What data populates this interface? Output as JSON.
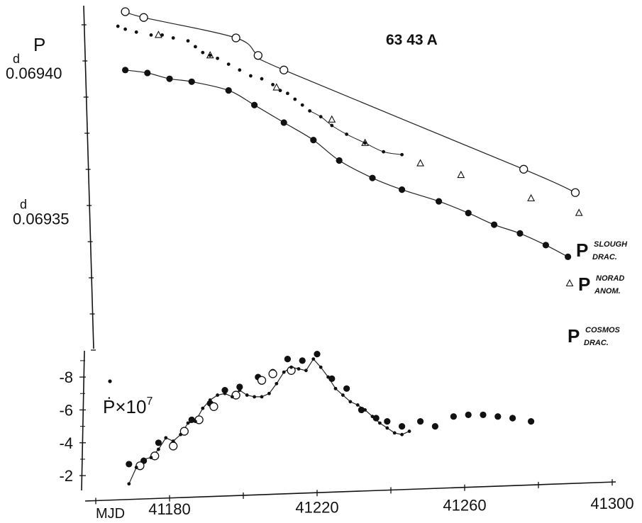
{
  "chart_data": [
    {
      "type": "scatter",
      "title": "63 43 A",
      "ylabel": "P",
      "y_tick_labels": [
        {
          "sup": "d",
          "text": "0.06940",
          "value": 0.0694
        },
        {
          "sup": "d",
          "text": "0.06935",
          "value": 0.06935
        }
      ],
      "ylim": [
        0.069305,
        0.069424
      ],
      "series": [
        {
          "label_main": "P",
          "label_sup": "SLOUGH",
          "label_sub": "DRAC.",
          "marker": "open-circle",
          "connected": true,
          "points": [
            [
              41168,
              0.06942
            ],
            [
              41173,
              0.069418
            ],
            [
              41198,
              0.069411
            ],
            [
              41204,
              0.069405
            ],
            [
              41211,
              0.0694
            ],
            [
              41276,
              0.069366
            ],
            [
              41290,
              0.069358
            ]
          ]
        },
        {
          "label_main": "P",
          "label_sup": "NORAD",
          "label_sub": "ANOM.",
          "marker": "open-triangle",
          "connected": false,
          "points": [
            [
              41177,
              0.069412
            ],
            [
              41191,
              0.069405
            ],
            [
              41209,
              0.069394
            ],
            [
              41224,
              0.069383
            ],
            [
              41233,
              0.069375
            ],
            [
              41248,
              0.069368
            ],
            [
              41259,
              0.069364
            ],
            [
              41278,
              0.069356
            ],
            [
              41291,
              0.069351
            ]
          ]
        },
        {
          "label_main": "P",
          "label_sup": "NORAD",
          "label_sub": "ANOM.",
          "marker": "small-dot",
          "connected": false,
          "points": [
            [
              41166,
              0.069415
            ],
            [
              41168,
              0.069414
            ],
            [
              41171,
              0.069413
            ],
            [
              41175,
              0.069412
            ],
            [
              41178,
              0.069412
            ],
            [
              41181,
              0.069411
            ],
            [
              41185,
              0.06941
            ],
            [
              41187,
              0.069408
            ],
            [
              41189,
              0.069406
            ],
            [
              41191,
              0.069405
            ],
            [
              41193,
              0.069404
            ],
            [
              41196,
              0.069402
            ],
            [
              41199,
              0.0694
            ],
            [
              41202,
              0.069398
            ],
            [
              41205,
              0.069397
            ],
            [
              41208,
              0.069395
            ],
            [
              41210,
              0.069393
            ],
            [
              41212,
              0.069392
            ],
            [
              41214,
              0.06939
            ],
            [
              41216,
              0.069388
            ],
            [
              41218,
              0.069386
            ],
            [
              41221,
              0.069384
            ],
            [
              41224,
              0.069381
            ],
            [
              41228,
              0.069378
            ],
            [
              41233,
              0.069375
            ],
            [
              41238,
              0.069372
            ],
            [
              41243,
              0.069371
            ]
          ]
        },
        {
          "label_main": "P",
          "label_sup": "COSMOS",
          "label_sub": "DRAC.",
          "marker": "filled-circle",
          "connected": true,
          "points": [
            [
              41168,
              0.0694
            ],
            [
              41174,
              0.069399
            ],
            [
              41180,
              0.069397
            ],
            [
              41186,
              0.069396
            ],
            [
              41196,
              0.069393
            ],
            [
              41203,
              0.069388
            ],
            [
              41211,
              0.069382
            ],
            [
              41219,
              0.069376
            ],
            [
              41226,
              0.069369
            ],
            [
              41235,
              0.069363
            ],
            [
              41243,
              0.069359
            ],
            [
              41253,
              0.069355
            ],
            [
              41261,
              0.069351
            ],
            [
              41268,
              0.069347
            ],
            [
              41275,
              0.069344
            ],
            [
              41282,
              0.06934
            ],
            [
              41288,
              0.069336
            ]
          ]
        }
      ]
    },
    {
      "type": "scatter",
      "ylabel": "Ṗ×10",
      "ylabel_exp": "7",
      "xlabel": "MJD",
      "x_tick_labels": [
        "41180",
        "41220",
        "41260",
        "41300"
      ],
      "xlim": [
        41157,
        41300
      ],
      "y_tick_labels": [
        "-8",
        "-6",
        "-4",
        "-2"
      ],
      "ylim": [
        -1.1,
        -9.6
      ],
      "series": [
        {
          "marker": "filled-circle",
          "points": [
            [
              41169,
              -2.7
            ],
            [
              41173,
              -2.9
            ],
            [
              41177,
              -4.0
            ],
            [
              41181,
              -3.9
            ],
            [
              41186,
              -5.4
            ],
            [
              41191,
              -6.4
            ],
            [
              41195,
              -7.2
            ],
            [
              41199,
              -7.4
            ],
            [
              41204,
              -8.0
            ],
            [
              41208,
              -8.3
            ],
            [
              41212,
              -9.1
            ],
            [
              41216,
              -9.0
            ],
            [
              41220,
              -9.4
            ],
            [
              41224,
              -7.9
            ],
            [
              41228,
              -7.3
            ],
            [
              41232,
              -6.0
            ],
            [
              41236,
              -5.5
            ],
            [
              41239,
              -5.3
            ],
            [
              41243,
              -5.0
            ],
            [
              41248,
              -5.3
            ],
            [
              41252,
              -5.0
            ],
            [
              41257,
              -5.6
            ],
            [
              41261,
              -5.7
            ],
            [
              41265,
              -5.7
            ],
            [
              41269,
              -5.6
            ],
            [
              41273,
              -5.5
            ],
            [
              41278,
              -5.3
            ]
          ]
        },
        {
          "marker": "open-circle",
          "points": [
            [
              41172,
              -2.6
            ],
            [
              41176,
              -3.2
            ],
            [
              41181,
              -3.8
            ],
            [
              41184,
              -4.7
            ],
            [
              41188,
              -5.4
            ],
            [
              41192,
              -6.2
            ],
            [
              41198,
              -6.9
            ],
            [
              41205,
              -7.8
            ],
            [
              41208,
              -8.2
            ],
            [
              41213,
              -8.4
            ]
          ]
        },
        {
          "marker": "small-dot",
          "connected": true,
          "points": [
            [
              41169,
              -1.5
            ],
            [
              41171,
              -2.5
            ],
            [
              41173,
              -3.0
            ],
            [
              41175,
              -3.1
            ],
            [
              41177,
              -3.6
            ],
            [
              41179,
              -4.3
            ],
            [
              41181,
              -4.1
            ],
            [
              41183,
              -4.5
            ],
            [
              41185,
              -5.2
            ],
            [
              41187,
              -5.3
            ],
            [
              41189,
              -6.1
            ],
            [
              41191,
              -6.6
            ],
            [
              41193,
              -6.9
            ],
            [
              41195,
              -7.0
            ],
            [
              41197,
              -6.8
            ],
            [
              41199,
              -7.2
            ],
            [
              41201,
              -6.9
            ],
            [
              41203,
              -6.8
            ],
            [
              41205,
              -6.8
            ],
            [
              41207,
              -7.0
            ],
            [
              41209,
              -7.6
            ],
            [
              41211,
              -8.3
            ],
            [
              41213,
              -8.6
            ],
            [
              41215,
              -8.5
            ],
            [
              41217,
              -8.4
            ],
            [
              41219,
              -9.1
            ],
            [
              41221,
              -8.6
            ],
            [
              41223,
              -8.0
            ],
            [
              41225,
              -7.3
            ],
            [
              41227,
              -6.9
            ],
            [
              41229,
              -6.5
            ],
            [
              41231,
              -6.3
            ],
            [
              41233,
              -6.0
            ],
            [
              41235,
              -5.6
            ],
            [
              41237,
              -5.2
            ],
            [
              41239,
              -4.9
            ],
            [
              41241,
              -4.6
            ],
            [
              41243,
              -4.5
            ],
            [
              41245,
              -4.7
            ]
          ]
        }
      ]
    }
  ]
}
